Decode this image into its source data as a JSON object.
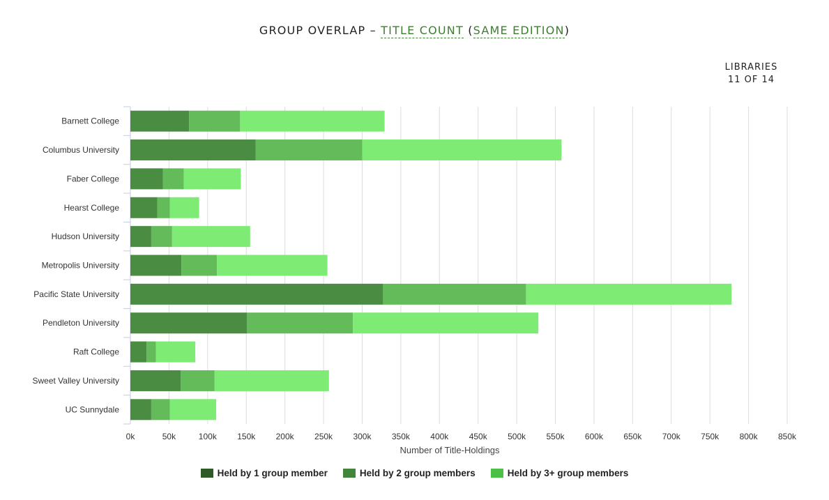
{
  "title": {
    "prefix": "GROUP OVERLAP – ",
    "metric": "TITLE COUNT",
    "open_paren": " (",
    "mode": "SAME EDITION",
    "close_paren": ")"
  },
  "libraries": {
    "label": "LIBRARIES",
    "count": "11 OF 14"
  },
  "legend": [
    {
      "label": "Held by 1 group member",
      "color": "#2e5a27"
    },
    {
      "label": "Held by 2 group members",
      "color": "#41843a"
    },
    {
      "label": "Held by 3+ group members",
      "color": "#4cc046"
    }
  ],
  "chart_data": {
    "type": "bar",
    "orientation": "horizontal",
    "stacked": true,
    "categories": [
      "Barnett College",
      "Columbus University",
      "Faber College",
      "Hearst College",
      "Hudson University",
      "Metropolis University",
      "Pacific State University",
      "Pendleton University",
      "Raft College",
      "Sweet Valley University",
      "UC Sunnydale"
    ],
    "series": [
      {
        "name": "Held by 1 group member",
        "color": "#4a8c42",
        "values": [
          76000,
          162000,
          42000,
          35000,
          27000,
          66000,
          327000,
          151000,
          21000,
          65000,
          27000
        ]
      },
      {
        "name": "Held by 2 group members",
        "color": "#63bb5a",
        "values": [
          66000,
          138000,
          27000,
          16000,
          27000,
          46000,
          185000,
          137000,
          12000,
          44000,
          24000
        ]
      },
      {
        "name": "Held by 3+ group members",
        "color": "#7eec74",
        "values": [
          187000,
          258000,
          74000,
          38000,
          101000,
          143000,
          266000,
          240000,
          51000,
          148000,
          60000
        ]
      }
    ],
    "xlabel": "Number of Title-Holdings",
    "xlim": [
      0,
      850000
    ],
    "xticks": [
      "0k",
      "50k",
      "100k",
      "150k",
      "200k",
      "250k",
      "300k",
      "350k",
      "400k",
      "450k",
      "500k",
      "550k",
      "600k",
      "650k",
      "700k",
      "750k",
      "800k",
      "850k"
    ],
    "grid": true,
    "legend_position": "bottom"
  }
}
